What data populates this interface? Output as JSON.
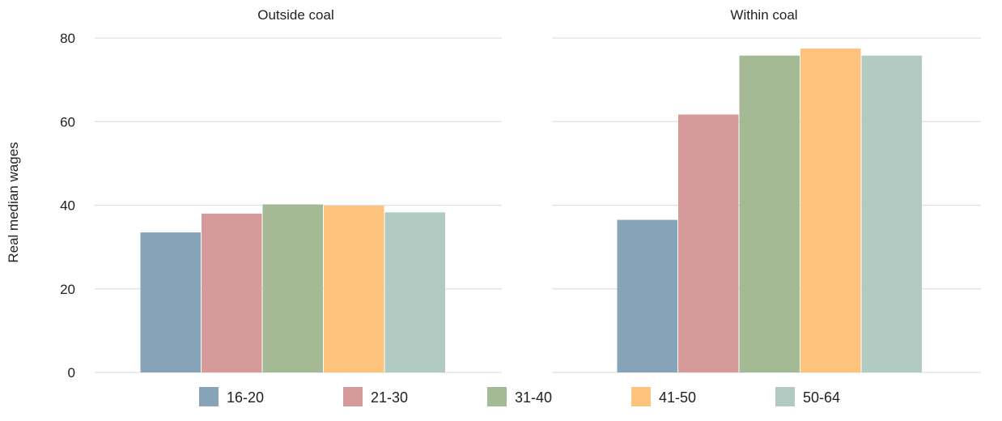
{
  "chart_data": {
    "type": "bar",
    "ylabel": "Real median wages",
    "ylim": [
      0,
      80
    ],
    "yticks": [
      0,
      20,
      40,
      60,
      80
    ],
    "grid": true,
    "legend_position": "bottom",
    "categories": [
      "Outside coal",
      "Within coal"
    ],
    "series": [
      {
        "name": "16-20",
        "color": "#86a3b8",
        "values": [
          33.5,
          36.5
        ]
      },
      {
        "name": "21-30",
        "color": "#d69a9a",
        "values": [
          38.0,
          61.7
        ]
      },
      {
        "name": "31-40",
        "color": "#a4ba94",
        "values": [
          40.2,
          75.8
        ]
      },
      {
        "name": "41-50",
        "color": "#fdc27c",
        "values": [
          39.9,
          77.5
        ]
      },
      {
        "name": "50-64",
        "color": "#b1cbc3",
        "values": [
          38.3,
          75.8
        ]
      }
    ]
  }
}
